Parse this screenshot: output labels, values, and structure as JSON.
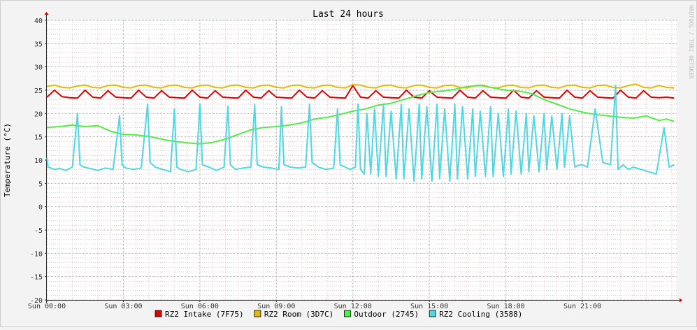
{
  "chart_data": {
    "type": "line",
    "title": "Last 24 hours",
    "xlabel": "",
    "ylabel": "Temperature (°C)",
    "watermark": "RRDTOOL / TOBI OETIKER",
    "ylim": [
      -20,
      40
    ],
    "yticks": [
      40,
      35,
      30,
      25,
      20,
      15,
      10,
      5,
      0,
      -5,
      -10,
      -15,
      -20
    ],
    "xlim": [
      0,
      24.7
    ],
    "xticks": [
      {
        "x": 0,
        "label": "Sun 00:00"
      },
      {
        "x": 3,
        "label": "Sun 03:00"
      },
      {
        "x": 6,
        "label": "Sun 06:00"
      },
      {
        "x": 9,
        "label": "Sun 09:00"
      },
      {
        "x": 12,
        "label": "Sun 12:00"
      },
      {
        "x": 15,
        "label": "Sun 15:00"
      },
      {
        "x": 18,
        "label": "Sun 18:00"
      },
      {
        "x": 21,
        "label": "Sun 21:00"
      }
    ],
    "grid": true,
    "legend_position": "bottom",
    "colors": {
      "background": "#F3F3F3",
      "canvas": "#FFFFFF",
      "minor_grid": "#E8C8C8",
      "major_grid": "#E59C9C",
      "axis": "#333333",
      "arrow": "#CC0000"
    },
    "series": [
      {
        "name": "RZ2 Intake (7F75)",
        "color": "#E60000",
        "x": [
          0,
          0.3,
          0.6,
          0.9,
          1.2,
          1.5,
          1.8,
          2.1,
          2.4,
          2.7,
          3,
          3.3,
          3.6,
          3.9,
          4.2,
          4.5,
          4.8,
          5.1,
          5.4,
          5.7,
          6,
          6.3,
          6.6,
          6.9,
          7.2,
          7.5,
          7.8,
          8.1,
          8.4,
          8.7,
          9,
          9.3,
          9.6,
          9.9,
          10.2,
          10.5,
          10.8,
          11.1,
          11.4,
          11.7,
          12,
          12.3,
          12.6,
          12.9,
          13.2,
          13.5,
          13.8,
          14.1,
          14.4,
          14.7,
          15,
          15.3,
          15.6,
          15.9,
          16.2,
          16.5,
          16.8,
          17.1,
          17.4,
          17.7,
          18,
          18.3,
          18.6,
          18.9,
          19.2,
          19.5,
          19.8,
          20.1,
          20.4,
          20.7,
          21,
          21.3,
          21.6,
          21.9,
          22.2,
          22.5,
          22.8,
          23.1,
          23.4,
          23.7,
          24,
          24.3,
          24.6
        ],
        "values": [
          23.5,
          25.0,
          23.6,
          23.4,
          23.3,
          25.0,
          23.5,
          23.3,
          24.9,
          23.5,
          23.4,
          23.3,
          25.0,
          23.5,
          23.3,
          24.9,
          23.5,
          23.4,
          23.3,
          25.0,
          23.5,
          23.3,
          24.9,
          23.5,
          23.4,
          23.3,
          25.0,
          23.5,
          23.3,
          24.9,
          23.5,
          23.4,
          23.3,
          25.0,
          23.5,
          23.3,
          24.9,
          23.5,
          23.4,
          23.3,
          26.0,
          23.5,
          23.3,
          24.9,
          23.5,
          23.4,
          23.3,
          25.0,
          23.5,
          23.3,
          24.9,
          23.5,
          23.4,
          23.3,
          25.0,
          23.5,
          23.3,
          24.9,
          23.5,
          23.4,
          23.3,
          25.0,
          23.5,
          23.3,
          24.9,
          23.5,
          23.4,
          23.3,
          25.0,
          23.5,
          23.3,
          24.9,
          23.5,
          23.4,
          23.3,
          25.0,
          23.5,
          23.3,
          24.9,
          23.5,
          23.4,
          23.5,
          23.3
        ]
      },
      {
        "name": "RZ2 Room (3D7C)",
        "color": "#E6B800",
        "x": [
          0,
          0.3,
          0.6,
          0.9,
          1.2,
          1.5,
          1.8,
          2.1,
          2.4,
          2.7,
          3,
          3.3,
          3.6,
          3.9,
          4.2,
          4.5,
          4.8,
          5.1,
          5.4,
          5.7,
          6,
          6.3,
          6.6,
          6.9,
          7.2,
          7.5,
          7.8,
          8.1,
          8.4,
          8.7,
          9,
          9.3,
          9.6,
          9.9,
          10.2,
          10.5,
          10.8,
          11.1,
          11.4,
          11.7,
          12,
          12.3,
          12.6,
          12.9,
          13.2,
          13.5,
          13.8,
          14.1,
          14.4,
          14.7,
          15,
          15.3,
          15.6,
          15.9,
          16.2,
          16.5,
          16.8,
          17.1,
          17.4,
          17.7,
          18,
          18.3,
          18.6,
          18.9,
          19.2,
          19.5,
          19.8,
          20.1,
          20.4,
          20.7,
          21,
          21.3,
          21.6,
          21.9,
          22.2,
          22.5,
          22.8,
          23.1,
          23.4,
          23.7,
          24,
          24.3,
          24.6
        ],
        "values": [
          25.8,
          26.1,
          25.6,
          25.5,
          25.9,
          26.1,
          25.6,
          25.5,
          26.0,
          26.1,
          25.6,
          25.5,
          26.0,
          26.1,
          25.6,
          25.5,
          26.0,
          26.1,
          25.6,
          25.5,
          26.0,
          26.1,
          25.6,
          25.5,
          26.0,
          26.1,
          25.6,
          25.5,
          26.0,
          26.1,
          25.6,
          25.5,
          26.0,
          26.1,
          25.6,
          25.5,
          26.0,
          26.1,
          25.6,
          25.5,
          26.2,
          26.1,
          25.6,
          25.5,
          26.0,
          26.1,
          25.6,
          25.5,
          26.0,
          26.1,
          25.6,
          25.5,
          26.0,
          26.1,
          25.6,
          25.5,
          26.0,
          26.1,
          25.6,
          25.5,
          26.0,
          26.1,
          25.6,
          25.5,
          26.0,
          26.1,
          25.6,
          25.5,
          26.0,
          26.1,
          25.6,
          25.5,
          26.0,
          26.1,
          25.6,
          25.5,
          26.0,
          26.3,
          25.6,
          25.5,
          26.0,
          25.6,
          25.5
        ]
      },
      {
        "name": "Outdoor (2745)",
        "color": "#54EC48",
        "x": [
          0,
          0.5,
          1,
          1.5,
          2,
          2.5,
          3,
          3.5,
          4,
          4.5,
          5,
          5.5,
          6,
          6.5,
          7,
          7.5,
          8,
          8.5,
          9,
          9.5,
          10,
          10.5,
          11,
          11.5,
          12,
          12.5,
          13,
          13.5,
          14,
          14.5,
          15,
          15.5,
          16,
          16.5,
          17,
          17.5,
          18,
          18.5,
          19,
          19.5,
          20,
          20.5,
          21,
          21.5,
          22,
          22.5,
          23,
          23.5,
          24,
          24.3,
          24.6
        ],
        "values": [
          17.0,
          17.2,
          17.5,
          17.2,
          17.4,
          16.2,
          15.5,
          15.4,
          15.1,
          14.5,
          14.0,
          13.7,
          13.5,
          13.8,
          14.5,
          15.5,
          16.5,
          17.0,
          17.2,
          17.5,
          18.0,
          18.8,
          19.2,
          19.8,
          20.5,
          21.0,
          21.8,
          22.2,
          23.0,
          23.8,
          24.5,
          24.8,
          25.2,
          25.8,
          26.0,
          25.5,
          25.0,
          24.8,
          24.3,
          23.0,
          22.0,
          21.0,
          20.3,
          19.8,
          19.5,
          19.2,
          19.0,
          19.5,
          18.5,
          18.8,
          18.3
        ]
      },
      {
        "name": "RZ2 Cooling (3588)",
        "color": "#4DD8E6",
        "x": [
          0,
          0.05,
          0.15,
          0.3,
          0.5,
          0.75,
          1.0,
          1.2,
          1.3,
          1.45,
          1.7,
          2.0,
          2.3,
          2.6,
          2.85,
          2.95,
          3.1,
          3.4,
          3.7,
          3.95,
          4.05,
          4.25,
          4.55,
          4.85,
          5.0,
          5.1,
          5.25,
          5.55,
          5.85,
          6.0,
          6.1,
          6.35,
          6.65,
          6.95,
          7.1,
          7.2,
          7.4,
          7.7,
          8.0,
          8.15,
          8.25,
          8.5,
          8.8,
          9.1,
          9.2,
          9.3,
          9.55,
          9.85,
          10.15,
          10.3,
          10.4,
          10.65,
          10.95,
          11.25,
          11.4,
          11.5,
          11.7,
          11.9,
          12.1,
          12.2,
          12.3,
          12.45,
          12.55,
          12.7,
          12.85,
          13.0,
          13.2,
          13.3,
          13.5,
          13.7,
          13.9,
          14.0,
          14.2,
          14.4,
          14.6,
          14.7,
          14.9,
          15.1,
          15.3,
          15.4,
          15.6,
          15.8,
          16.0,
          16.1,
          16.3,
          16.5,
          16.7,
          16.8,
          17.0,
          17.2,
          17.4,
          17.5,
          17.7,
          17.9,
          18.1,
          18.2,
          18.4,
          18.6,
          18.8,
          18.9,
          19.1,
          19.3,
          19.5,
          19.6,
          19.8,
          20.0,
          20.2,
          20.3,
          20.5,
          20.7,
          20.9,
          21.0,
          21.2,
          21.5,
          21.8,
          22.1,
          22.3,
          22.4,
          22.6,
          22.8,
          23.0,
          23.3,
          23.6,
          23.9,
          24.2,
          24.4,
          24.6
        ],
        "values": [
          10.5,
          8.5,
          8.3,
          8.0,
          8.2,
          7.8,
          8.5,
          20.0,
          9.0,
          8.5,
          8.2,
          7.8,
          8.3,
          8.0,
          19.5,
          9.0,
          8.3,
          8.0,
          8.3,
          22.0,
          9.5,
          8.5,
          8.0,
          7.5,
          21.0,
          8.5,
          8.0,
          7.5,
          8.0,
          22.0,
          9.0,
          8.5,
          7.8,
          8.5,
          21.5,
          9.0,
          8.0,
          8.3,
          8.5,
          22.0,
          9.0,
          8.5,
          8.3,
          8.0,
          21.5,
          9.0,
          8.5,
          8.3,
          8.5,
          22.0,
          9.5,
          8.5,
          8.0,
          8.3,
          21.0,
          9.0,
          8.5,
          8.0,
          8.5,
          22.0,
          8.0,
          7.0,
          20.0,
          7.0,
          21.0,
          6.5,
          22.0,
          6.5,
          20.5,
          6.0,
          22.0,
          6.0,
          21.0,
          5.5,
          22.0,
          6.0,
          21.5,
          5.5,
          22.0,
          6.0,
          21.0,
          5.5,
          22.0,
          6.0,
          21.5,
          6.0,
          21.0,
          6.5,
          20.5,
          6.5,
          21.5,
          6.5,
          20.0,
          6.5,
          21.0,
          7.0,
          20.5,
          7.0,
          20.0,
          7.5,
          19.5,
          7.5,
          20.0,
          8.0,
          19.5,
          8.0,
          20.0,
          8.5,
          19.5,
          8.5,
          9.0,
          9.0,
          8.5,
          21.0,
          9.5,
          9.0,
          26.0,
          8.0,
          9.0,
          8.0,
          8.5,
          8.0,
          7.5,
          7.0,
          17.0,
          8.5,
          9.0
        ]
      }
    ]
  }
}
